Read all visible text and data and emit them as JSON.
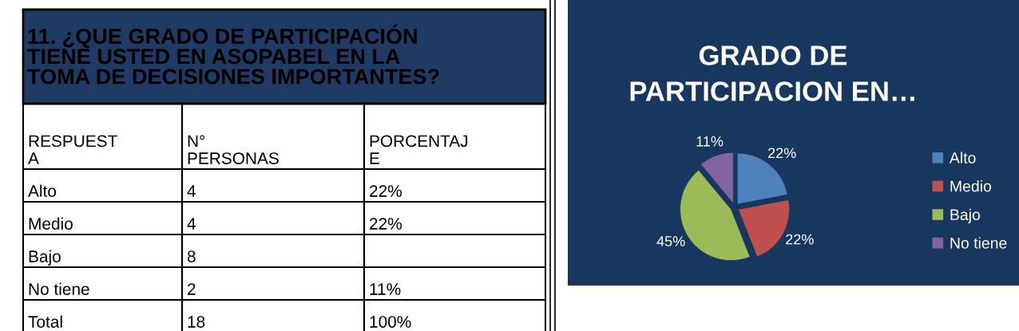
{
  "chart_data": [
    {
      "type": "other",
      "title": "11. ¿QUE GRADO DE PARTICIPACIÓN\nTIENE USTED EN ASOPABEL EN LA\nTOMA DE DECISIONES IMPORTANTES?",
      "annotations": [
        "RESPUEST\nA",
        "N°\nPERSONAS",
        "PORCENTAJ\nE",
        "Alto",
        "4",
        "22%",
        "Medio",
        "4",
        "22%",
        "Bajo",
        "8",
        null,
        "No tiene",
        "2",
        "11%",
        "Total",
        "18",
        "100%"
      ]
    },
    {
      "type": "pie",
      "title": "GRADO DE\nPARTICIPACION EN…",
      "categories": [
        "Alto",
        "Medio",
        "Bajo",
        "No tiene"
      ],
      "values": [
        22,
        22,
        45,
        11
      ],
      "colors": [
        "#4f81bd",
        "#c0504d",
        "#9bbb59",
        "#8064a2"
      ],
      "value_labels": [
        "22%",
        "22%",
        "45%",
        "11%"
      ],
      "legend": "right"
    }
  ]
}
